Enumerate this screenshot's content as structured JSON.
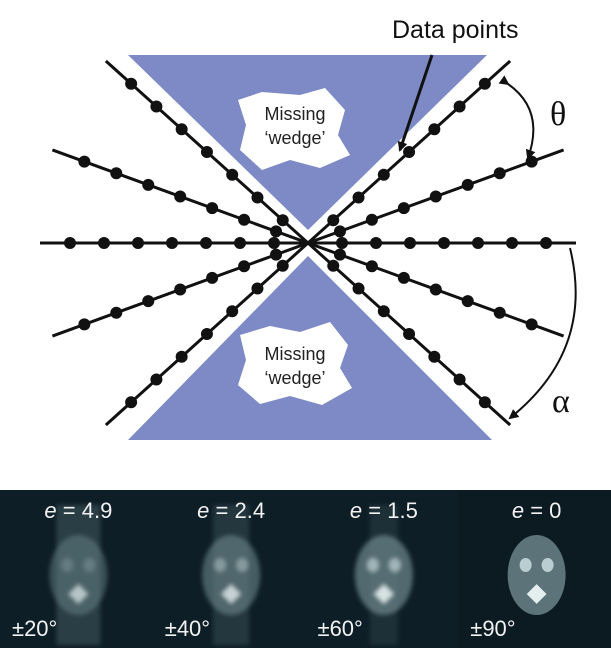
{
  "diagram": {
    "annotations": {
      "data_points": "Data points",
      "theta": "θ",
      "alpha": "α"
    },
    "wedges": [
      {
        "lines": [
          "Missing",
          "‘wedge’"
        ]
      },
      {
        "lines": [
          "Missing",
          "‘wedge’"
        ]
      }
    ],
    "panels": [
      {
        "e_symbol": "e",
        "e_value": "= 4.9",
        "range": "±20°"
      },
      {
        "e_symbol": "e",
        "e_value": "= 2.4",
        "range": "±40°"
      },
      {
        "e_symbol": "e",
        "e_value": "= 1.5",
        "range": "±60°"
      },
      {
        "e_symbol": "e",
        "e_value": "= 0",
        "range": "±90°"
      }
    ]
  }
}
